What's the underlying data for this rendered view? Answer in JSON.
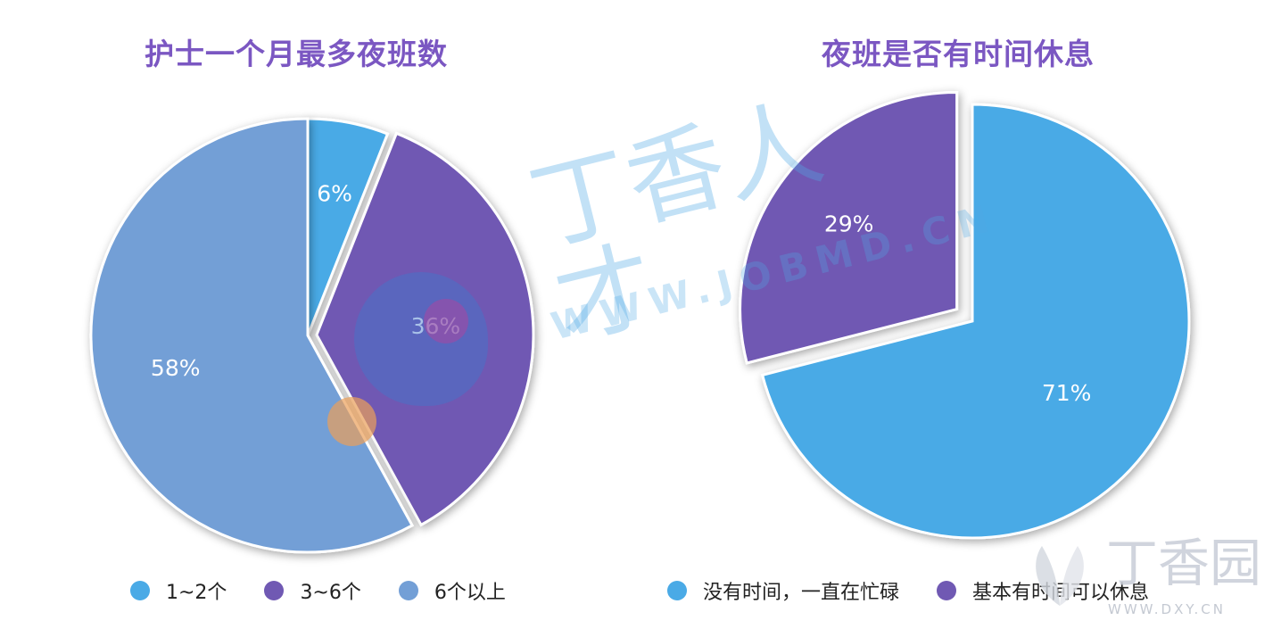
{
  "chart_data": [
    {
      "type": "pie",
      "title": "护士一个月最多夜班数",
      "slices": [
        {
          "label": "1~2个",
          "value": 6,
          "display": "6%",
          "color": "#4aaae6"
        },
        {
          "label": "3~6个",
          "value": 36,
          "display": "36%",
          "color": "#7059b3"
        },
        {
          "label": "6个以上",
          "value": 58,
          "display": "58%",
          "color": "#739fd6"
        }
      ],
      "legend_position": "bottom"
    },
    {
      "type": "pie",
      "title": "夜班是否有时间休息",
      "slices": [
        {
          "label": "没有时间，一直在忙碌",
          "value": 71,
          "display": "71%",
          "color": "#4aaae6"
        },
        {
          "label": "基本有时间可以休息",
          "value": 29,
          "display": "29%",
          "color": "#7059b3"
        }
      ],
      "legend_position": "bottom"
    }
  ],
  "watermark": {
    "text_cn": "丁香人才",
    "url": "WWW.JOBMD.CN",
    "corner_text_cn": "丁香园",
    "corner_url": "WWW.DXY.CN"
  },
  "colors": {
    "title": "#7b57c2",
    "light_blue": "#4aaae6",
    "purple": "#7059b3",
    "steel_blue": "#739fd6"
  }
}
